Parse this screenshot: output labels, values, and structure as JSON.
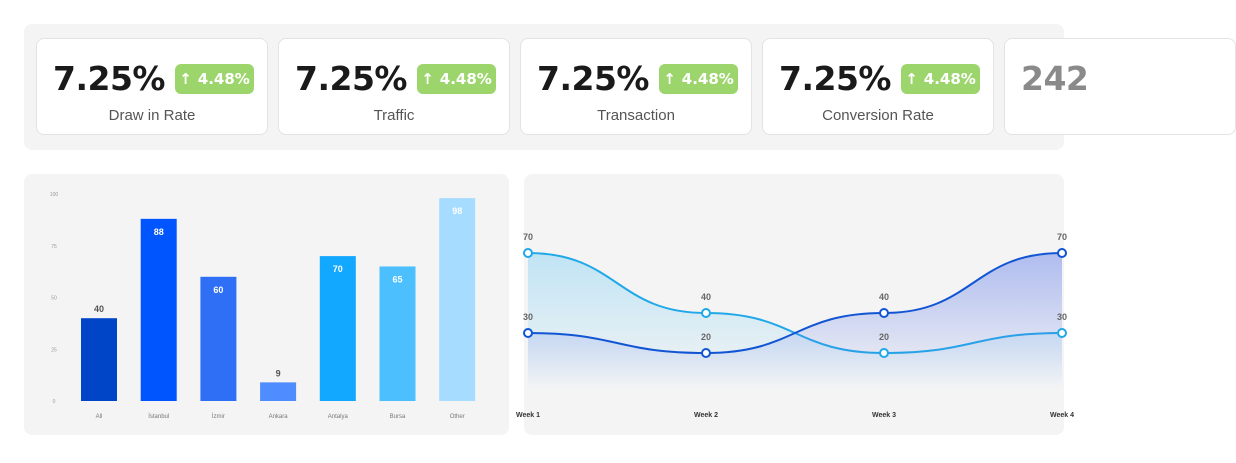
{
  "kpis": [
    {
      "value": "7.25%",
      "change": "4.48%",
      "label": "Draw in Rate"
    },
    {
      "value": "7.25%",
      "change": "4.48%",
      "label": "Traffic"
    },
    {
      "value": "7.25%",
      "change": "4.48%",
      "label": "Transaction"
    },
    {
      "value": "7.25%",
      "change": "4.48%",
      "label": "Conversion Rate"
    },
    {
      "value": "242"
    }
  ],
  "colors": {
    "badge": "#9dd56d",
    "bars": [
      "#0044c8",
      "#0055ff",
      "#2f6ff5",
      "#4f8cff",
      "#13a8ff",
      "#4cc0ff",
      "#a5dcff"
    ],
    "line_a": "#20a8e8",
    "line_b": "#1255d4"
  },
  "chart_data": [
    {
      "type": "bar",
      "categories": [
        "All",
        "İstanbul",
        "İzmir",
        "Ankara",
        "Antalya",
        "Bursa",
        "Other"
      ],
      "values": [
        40,
        88,
        60,
        9,
        70,
        65,
        98
      ],
      "yticks": [
        "0",
        "25",
        "50",
        "75",
        "100"
      ],
      "ylim": [
        0,
        100
      ],
      "grid": false
    },
    {
      "type": "area",
      "categories": [
        "Week 1",
        "Week 2",
        "Week 3",
        "Week 4"
      ],
      "series": [
        {
          "values": [
            70,
            40,
            20,
            30
          ]
        },
        {
          "values": [
            30,
            20,
            40,
            70
          ]
        }
      ],
      "grid": false
    }
  ]
}
